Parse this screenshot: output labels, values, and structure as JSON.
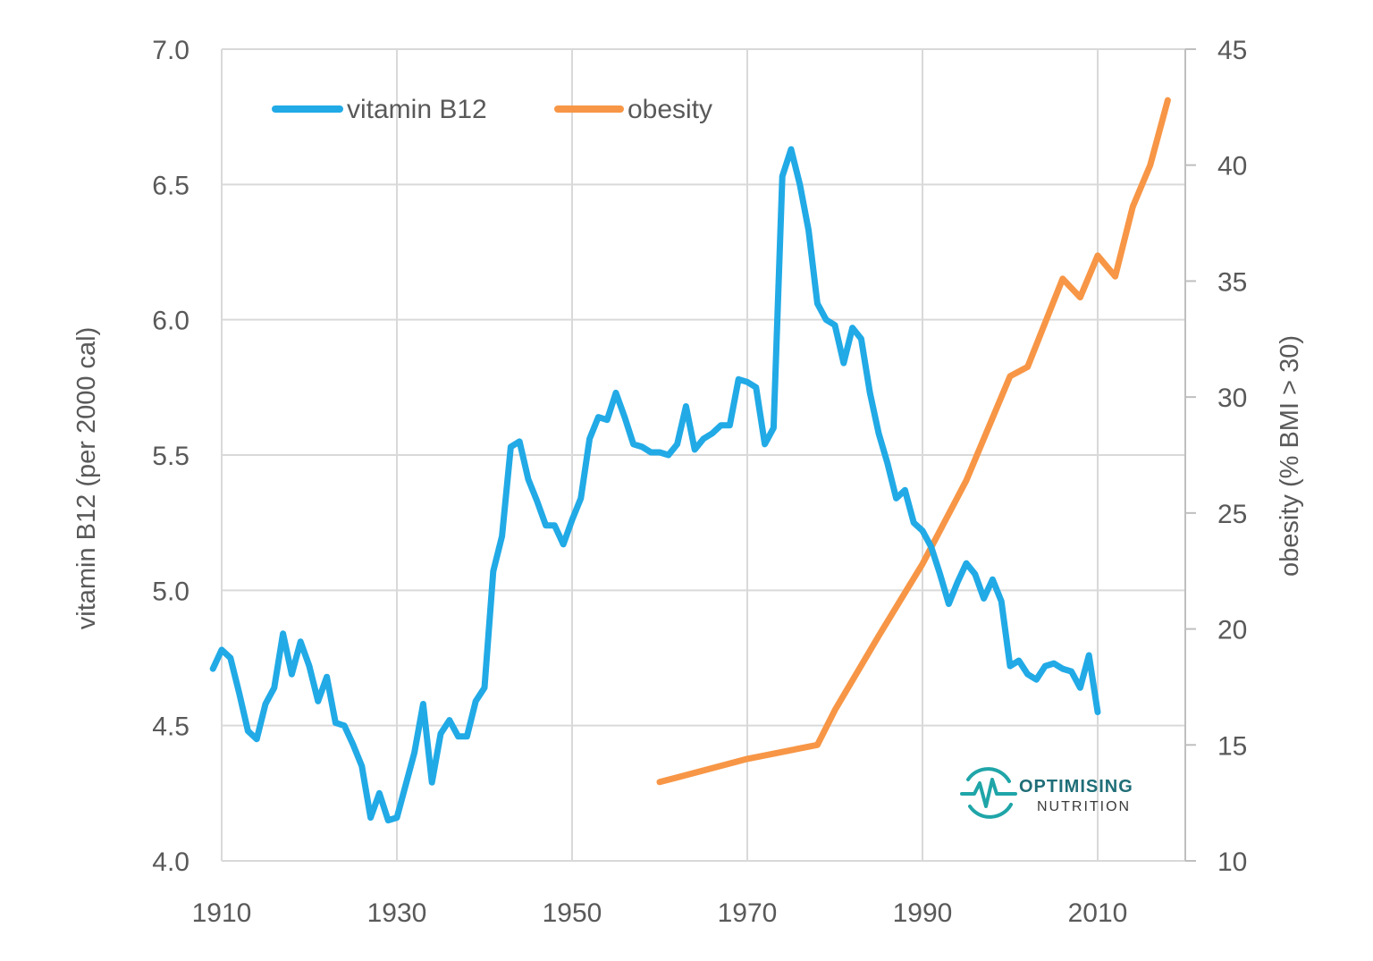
{
  "chart_data": {
    "type": "line",
    "title": "",
    "xlabel": "",
    "ylabel": "vitamin B12 (per 2000 cal)",
    "y2label": "obesity (% BMI > 30)",
    "xlim": [
      1910,
      2020
    ],
    "ylim": [
      4.0,
      7.0
    ],
    "y2lim": [
      10,
      45
    ],
    "x_ticks": [
      "1910",
      "1930",
      "1950",
      "1970",
      "1990",
      "2010"
    ],
    "y_ticks": [
      "4.0",
      "4.5",
      "5.0",
      "5.5",
      "6.0",
      "6.5",
      "7.0"
    ],
    "y2_ticks": [
      "10",
      "15",
      "20",
      "25",
      "30",
      "35",
      "40",
      "45"
    ],
    "grid": true,
    "legend_position": "top-left",
    "series": [
      {
        "name": "vitamin B12",
        "axis": "left",
        "color": "#21aae6",
        "x": [
          1909,
          1910,
          1911,
          1912,
          1913,
          1914,
          1915,
          1916,
          1917,
          1918,
          1919,
          1920,
          1921,
          1922,
          1923,
          1924,
          1925,
          1926,
          1927,
          1928,
          1929,
          1930,
          1931,
          1932,
          1933,
          1934,
          1935,
          1936,
          1937,
          1938,
          1939,
          1940,
          1941,
          1942,
          1943,
          1944,
          1945,
          1946,
          1947,
          1948,
          1949,
          1950,
          1951,
          1952,
          1953,
          1954,
          1955,
          1956,
          1957,
          1958,
          1959,
          1960,
          1961,
          1962,
          1963,
          1964,
          1965,
          1966,
          1967,
          1968,
          1969,
          1970,
          1971,
          1972,
          1973,
          1974,
          1975,
          1976,
          1977,
          1978,
          1979,
          1980,
          1981,
          1982,
          1983,
          1984,
          1985,
          1986,
          1987,
          1988,
          1989,
          1990,
          1991,
          1992,
          1993,
          1994,
          1995,
          1996,
          1997,
          1998,
          1999,
          2000,
          2001,
          2002,
          2003,
          2004,
          2005,
          2006,
          2007,
          2008,
          2009,
          2010
        ],
        "values": [
          4.71,
          4.78,
          4.75,
          4.62,
          4.48,
          4.45,
          4.58,
          4.64,
          4.84,
          4.69,
          4.81,
          4.72,
          4.59,
          4.68,
          4.51,
          4.5,
          4.43,
          4.35,
          4.16,
          4.25,
          4.15,
          4.16,
          4.28,
          4.4,
          4.58,
          4.29,
          4.47,
          4.52,
          4.46,
          4.46,
          4.59,
          4.64,
          5.07,
          5.2,
          5.53,
          5.55,
          5.41,
          5.33,
          5.24,
          5.24,
          5.17,
          5.26,
          5.34,
          5.56,
          5.64,
          5.63,
          5.73,
          5.64,
          5.54,
          5.53,
          5.51,
          5.51,
          5.5,
          5.54,
          5.68,
          5.52,
          5.56,
          5.58,
          5.61,
          5.61,
          5.78,
          5.77,
          5.75,
          5.54,
          5.6,
          6.53,
          6.63,
          6.5,
          6.33,
          6.06,
          6.0,
          5.98,
          5.84,
          5.97,
          5.93,
          5.73,
          5.58,
          5.47,
          5.34,
          5.37,
          5.25,
          5.22,
          5.16,
          5.06,
          4.95,
          5.03,
          5.1,
          5.06,
          4.97,
          5.04,
          4.96,
          4.72,
          4.74,
          4.69,
          4.67,
          4.72,
          4.73,
          4.71,
          4.7,
          4.64,
          4.76,
          4.55
        ]
      },
      {
        "name": "obesity",
        "axis": "right",
        "color": "#f79646",
        "x": [
          1960,
          1970,
          1978,
          1980,
          1985,
          1990,
          1995,
          2000,
          2002,
          2004,
          2006,
          2008,
          2010,
          2012,
          2014,
          2016,
          2018
        ],
        "values": [
          13.4,
          14.4,
          15.0,
          16.5,
          19.7,
          22.8,
          26.4,
          30.9,
          31.3,
          33.2,
          35.1,
          34.3,
          36.1,
          35.2,
          38.2,
          40.0,
          42.8
        ]
      }
    ]
  },
  "logo": {
    "line1": "OPTIMISING",
    "line2": "NUTRITION",
    "color": "#1fa5a8"
  }
}
